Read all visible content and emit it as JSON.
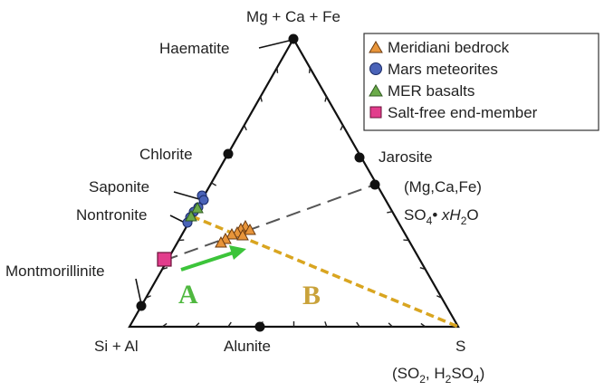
{
  "vertices": {
    "top": "Mg + Ca + Fe",
    "left": "Si + Al",
    "right": "S",
    "right_sub_1": "(SO",
    "right_sub_2": ", H",
    "right_sub_3": "SO",
    "right_sub_4": ")"
  },
  "minerals": {
    "haematite": "Haematite",
    "chlorite": "Chlorite",
    "saponite": "Saponite",
    "nontronite": "Nontronite",
    "montmorillinite": "Montmorillinite",
    "alunite": "Alunite",
    "jarosite": "Jarosite"
  },
  "sulfate": {
    "line1": "(Mg,Ca,Fe)",
    "line2_a": "SO",
    "line2_b": "• xH",
    "line2_c": "O"
  },
  "arrows": {
    "a": "A",
    "b": "B"
  },
  "subscripts": {
    "two": "2",
    "four": "4"
  },
  "legend": {
    "items": [
      {
        "label": "Meridiani bedrock",
        "marker": "triangle",
        "color": "#e8953a"
      },
      {
        "label": "Mars meteorites",
        "marker": "circle",
        "color": "#4a63b8"
      },
      {
        "label": "MER basalts",
        "marker": "triangle",
        "color": "#6bab4a"
      },
      {
        "label": "Salt-free end-member",
        "marker": "square",
        "color": "#e23d8c"
      }
    ]
  },
  "colors": {
    "arrow_a": "#3cc43a",
    "arrow_b": "#d9a520",
    "label_a": "#4fb83f",
    "label_b": "#c9a23a"
  }
}
